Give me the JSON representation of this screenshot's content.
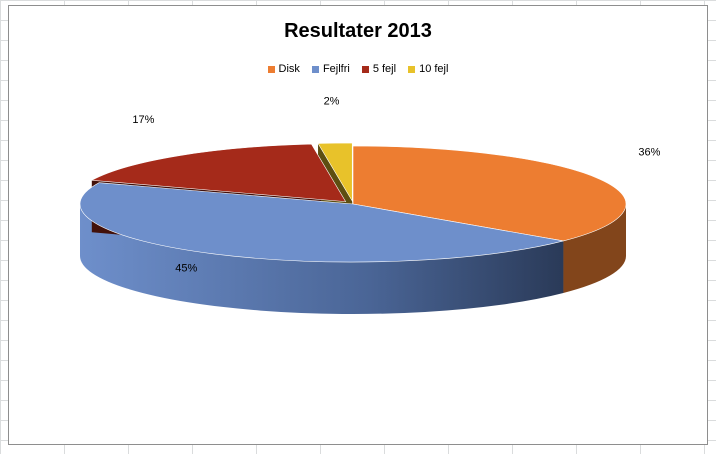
{
  "chart_data": {
    "type": "pie",
    "title": "Resultater 2013",
    "legend_placement": "top",
    "categories": [
      "Disk",
      "Fejlfri",
      "5 fejl",
      "10 fejl"
    ],
    "values": [
      36,
      45,
      17,
      2
    ],
    "data_labels": [
      "36%",
      "45%",
      "17%",
      "2%"
    ],
    "colors": [
      "#ed7d31",
      "#6e8fcb",
      "#a52a1a",
      "#e8c22a"
    ]
  }
}
